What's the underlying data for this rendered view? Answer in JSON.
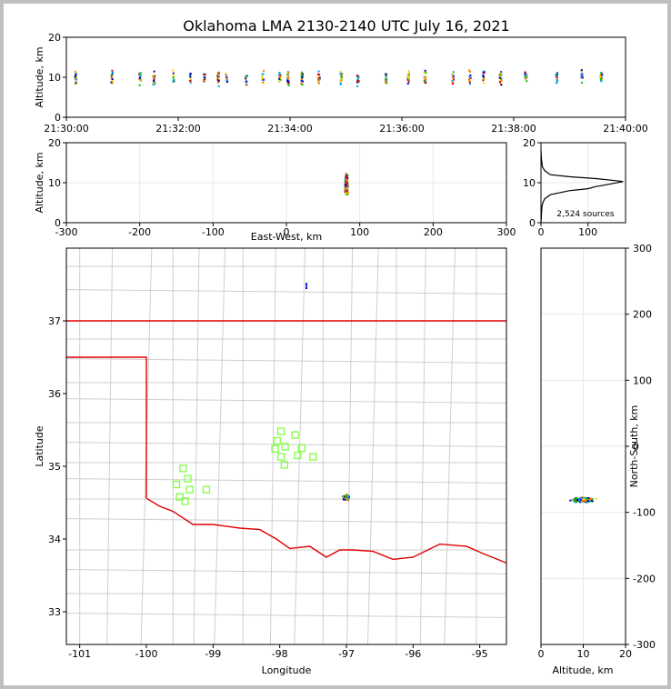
{
  "title": "Oklahoma LMA 2130-2140 UTC July 16, 2021",
  "colors": {
    "state_border": "#e00000",
    "county": "#cfcfcf",
    "station": "#80ff40",
    "grid": "#e8e8e8",
    "source_palette": [
      "#0000c8",
      "#00a0ff",
      "#00c000",
      "#ffd000",
      "#ff8000",
      "#e00000",
      "#000000"
    ]
  },
  "chart_data": [
    {
      "id": "time_height",
      "type": "scatter",
      "xlabel": "",
      "ylabel": "Altitude, km",
      "x_ticks": [
        "21:30:00",
        "21:32:00",
        "21:34:00",
        "21:36:00",
        "21:38:00",
        "21:40:00"
      ],
      "x_range_minutes": [
        0,
        10
      ],
      "ylim": [
        0,
        20
      ],
      "y_ticks": [
        0,
        10,
        20
      ],
      "flash_times_min": [
        0.15,
        0.8,
        1.3,
        1.55,
        1.9,
        2.2,
        2.45,
        2.7,
        2.85,
        3.2,
        3.5,
        3.8,
        3.95,
        4.2,
        4.5,
        4.9,
        5.2,
        5.7,
        6.1,
        6.4,
        6.9,
        7.2,
        7.45,
        7.75,
        8.2,
        8.75,
        9.2,
        9.55
      ]
    },
    {
      "id": "ew_altitude",
      "type": "scatter",
      "xlabel": "East-West, km",
      "ylabel": "Altitude, km",
      "xlim": [
        -300,
        300
      ],
      "x_ticks": [
        -300,
        -200,
        -100,
        0,
        100,
        200,
        300
      ],
      "ylim": [
        0,
        20
      ],
      "y_ticks": [
        0,
        10,
        20
      ],
      "cluster_center": {
        "ew_km": 82,
        "alt_km": 9.5
      }
    },
    {
      "id": "altitude_histogram",
      "type": "line",
      "xlabel": "",
      "ylabel": "",
      "xlim": [
        0,
        180
      ],
      "x_ticks": [
        0,
        100
      ],
      "ylim": [
        0,
        20
      ],
      "y_ticks": [
        0,
        10,
        20
      ],
      "annotation": "2,524 sources",
      "profile": [
        [
          0,
          0
        ],
        [
          1,
          2
        ],
        [
          2,
          4
        ],
        [
          4,
          5
        ],
        [
          8,
          6
        ],
        [
          20,
          7
        ],
        [
          60,
          8
        ],
        [
          100,
          8.5
        ],
        [
          115,
          9
        ],
        [
          140,
          9.5
        ],
        [
          175,
          10.3
        ],
        [
          120,
          11
        ],
        [
          60,
          11.5
        ],
        [
          20,
          12
        ],
        [
          8,
          13
        ],
        [
          3,
          14
        ],
        [
          1,
          16
        ],
        [
          0,
          18
        ]
      ]
    },
    {
      "id": "plan_view",
      "type": "scatter",
      "xlabel": "Longitude",
      "ylabel": "Latitude",
      "xlim": [
        -101.2,
        -94.6
      ],
      "x_ticks": [
        -101,
        -100,
        -99,
        -98,
        -97,
        -96,
        -95
      ],
      "ylim": [
        32.55,
        38.0
      ],
      "y_ticks": [
        33,
        34,
        35,
        36,
        37
      ],
      "sources_center": {
        "lon": -97.0,
        "lat": 34.57
      },
      "outlier": {
        "lon": -97.6,
        "lat": 37.45
      },
      "stations": [
        [
          -97.98,
          35.48
        ],
        [
          -98.04,
          35.35
        ],
        [
          -98.07,
          35.24
        ],
        [
          -97.92,
          35.27
        ],
        [
          -97.77,
          35.43
        ],
        [
          -97.67,
          35.25
        ],
        [
          -97.5,
          35.13
        ],
        [
          -97.73,
          35.15
        ],
        [
          -97.98,
          35.13
        ],
        [
          -97.93,
          35.02
        ],
        [
          -99.45,
          34.97
        ],
        [
          -99.38,
          34.83
        ],
        [
          -99.55,
          34.75
        ],
        [
          -99.35,
          34.68
        ],
        [
          -99.1,
          34.68
        ],
        [
          -99.5,
          34.58
        ],
        [
          -99.42,
          34.52
        ]
      ]
    },
    {
      "id": "altitude_ns",
      "type": "scatter",
      "xlabel": "Altitude, km",
      "ylabel": "North-South, km",
      "xlim": [
        0,
        20
      ],
      "x_ticks": [
        0,
        10,
        20
      ],
      "ylim": [
        -300,
        300
      ],
      "y_ticks": [
        -300,
        -200,
        -100,
        0,
        100,
        200,
        300
      ],
      "cluster_center": {
        "alt_km": 10,
        "ns_km": -81
      }
    }
  ]
}
